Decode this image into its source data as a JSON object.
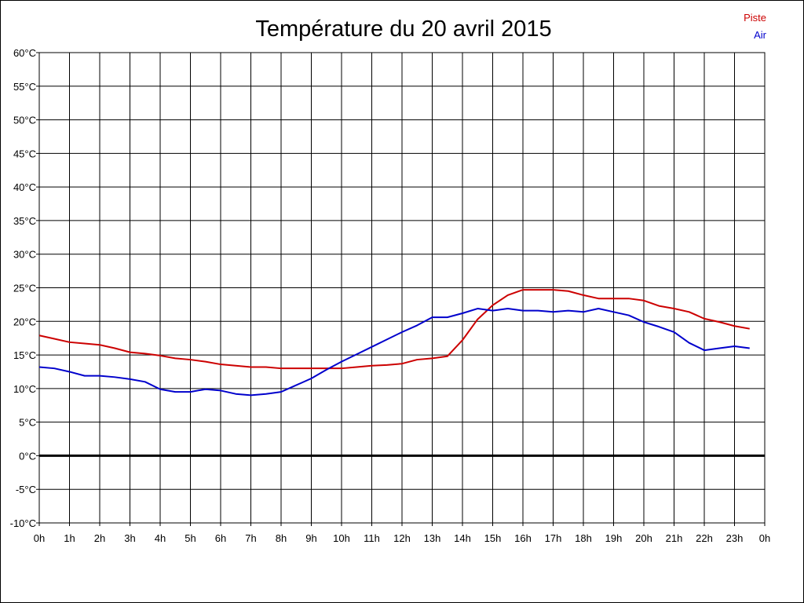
{
  "chart_data": {
    "type": "line",
    "title": "Température du 20 avril 2015",
    "xlabel": "",
    "ylabel": "",
    "x": [
      0,
      0.5,
      1,
      1.5,
      2,
      2.5,
      3,
      3.5,
      4,
      4.5,
      5,
      5.5,
      6,
      6.5,
      7,
      7.5,
      8,
      8.5,
      9,
      9.5,
      10,
      10.5,
      11,
      11.5,
      12,
      12.5,
      13,
      13.5,
      14,
      14.5,
      15,
      15.5,
      16,
      16.5,
      17,
      17.5,
      18,
      18.5,
      19,
      19.5,
      20,
      20.5,
      21,
      21.5,
      22,
      22.5,
      23,
      23.5
    ],
    "x_tick_labels": [
      "0h",
      "1h",
      "2h",
      "3h",
      "4h",
      "5h",
      "6h",
      "7h",
      "8h",
      "9h",
      "10h",
      "11h",
      "12h",
      "13h",
      "14h",
      "15h",
      "16h",
      "17h",
      "18h",
      "19h",
      "20h",
      "21h",
      "22h",
      "23h",
      "0h"
    ],
    "xlim": [
      0,
      24
    ],
    "y_tick_labels": [
      "-10°C",
      "-5°C",
      "0°C",
      "5°C",
      "10°C",
      "15°C",
      "20°C",
      "25°C",
      "30°C",
      "35°C",
      "40°C",
      "45°C",
      "50°C",
      "55°C",
      "60°C"
    ],
    "ylim": [
      -10,
      60
    ],
    "y_step": 5,
    "grid": true,
    "zero_line": true,
    "legend_position": "top-right",
    "series": [
      {
        "name": "Piste",
        "color": "#cc0000",
        "values": [
          17.9,
          17.4,
          16.9,
          16.7,
          16.5,
          16.0,
          15.4,
          15.2,
          14.9,
          14.5,
          14.3,
          14.0,
          13.6,
          13.4,
          13.2,
          13.2,
          13.0,
          13.0,
          13.0,
          13.0,
          13.0,
          13.2,
          13.4,
          13.5,
          13.7,
          14.3,
          14.5,
          14.8,
          17.2,
          20.3,
          22.4,
          23.9,
          24.7,
          24.7,
          24.7,
          24.5,
          23.9,
          23.4,
          23.4,
          23.4,
          23.1,
          22.3,
          21.9,
          21.4,
          20.4,
          19.9,
          19.3,
          18.9
        ]
      },
      {
        "name": "Air",
        "color": "#0000cc",
        "values": [
          13.2,
          13.0,
          12.5,
          11.9,
          11.9,
          11.7,
          11.4,
          11.0,
          9.9,
          9.5,
          9.5,
          9.9,
          9.7,
          9.2,
          9.0,
          9.2,
          9.5,
          10.5,
          11.5,
          12.8,
          14.0,
          15.1,
          16.2,
          17.3,
          18.4,
          19.4,
          20.6,
          20.6,
          21.2,
          21.9,
          21.6,
          21.9,
          21.6,
          21.6,
          21.4,
          21.6,
          21.4,
          21.9,
          21.4,
          20.9,
          19.9,
          19.2,
          18.4,
          16.8,
          15.7,
          16.0,
          16.3,
          16.0
        ]
      }
    ]
  }
}
